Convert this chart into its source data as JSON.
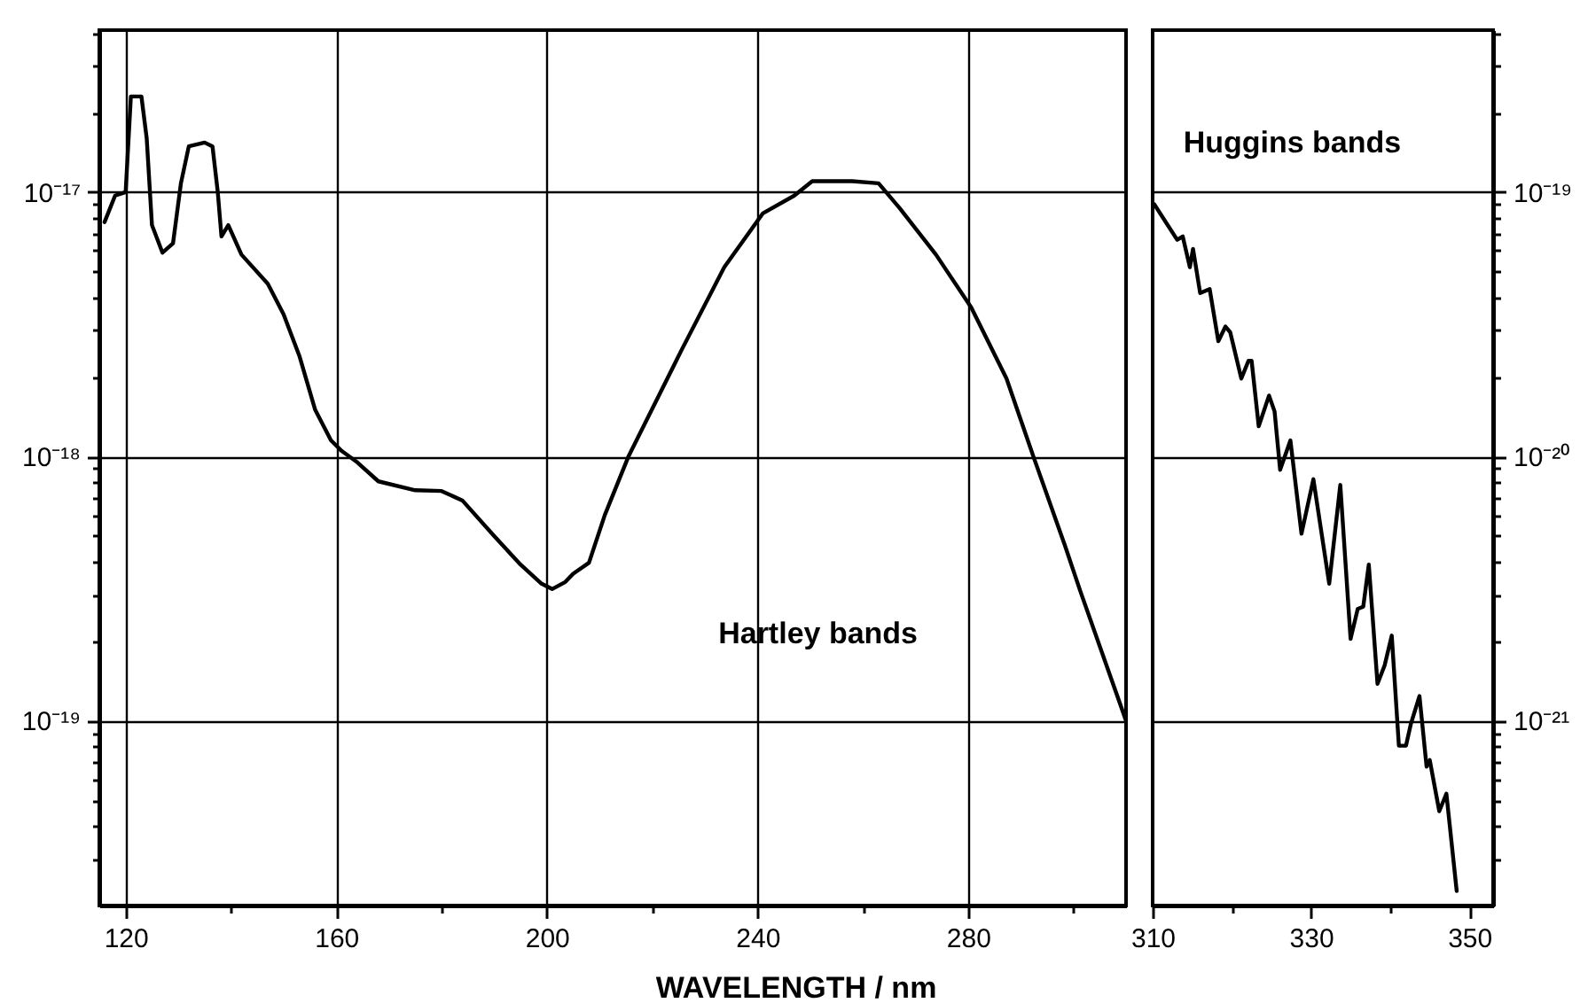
{
  "chart_data": [
    {
      "type": "line",
      "xlabel": "WAVELENGTH / nm",
      "log": "y",
      "grid": true,
      "xlim": [
        115,
        310
      ],
      "xticks": [
        120,
        {
          "value": 140,
          "label": null
        },
        160,
        {
          "value": 180,
          "label": null
        },
        200,
        {
          "value": 220,
          "label": null
        },
        240,
        {
          "value": 260,
          "label": null
        },
        280,
        {
          "value": 300,
          "label": null
        }
      ],
      "ylim": [
        2e-20,
        4.1e-17
      ],
      "yticks": [
        {
          "value": 3e-20,
          "label": null
        },
        {
          "value": 4e-20,
          "label": null
        },
        {
          "value": 5e-20,
          "label": null
        },
        {
          "value": 6e-20,
          "label": null
        },
        {
          "value": 7e-20,
          "label": null
        },
        {
          "value": 8e-20,
          "label": null
        },
        {
          "value": 9e-20,
          "label": null
        },
        {
          "value": 1e-19,
          "label": "10⁻¹⁹"
        },
        {
          "value": 2e-19,
          "label": null
        },
        {
          "value": 3e-19,
          "label": null
        },
        {
          "value": 4e-19,
          "label": null
        },
        {
          "value": 5e-19,
          "label": null
        },
        {
          "value": 6e-19,
          "label": null
        },
        {
          "value": 7e-19,
          "label": null
        },
        {
          "value": 8e-19,
          "label": null
        },
        {
          "value": 9e-19,
          "label": null
        },
        {
          "value": 1e-18,
          "label": "10⁻¹⁸"
        },
        {
          "value": 2e-18,
          "label": null
        },
        {
          "value": 3e-18,
          "label": null
        },
        {
          "value": 4e-18,
          "label": null
        },
        {
          "value": 5e-18,
          "label": null
        },
        {
          "value": 6e-18,
          "label": null
        },
        {
          "value": 7e-18,
          "label": null
        },
        {
          "value": 8e-18,
          "label": null
        },
        {
          "value": 9e-18,
          "label": null
        },
        {
          "value": 1e-17,
          "label": "10⁻¹⁷"
        },
        {
          "value": 2e-17,
          "label": null
        },
        {
          "value": 3e-17,
          "label": null
        },
        {
          "value": 4e-17,
          "label": null
        }
      ],
      "annotations": [
        "Hartley bands"
      ],
      "x": [
        116,
        118,
        120,
        121,
        123,
        124,
        125,
        127,
        129,
        130.5,
        132,
        135,
        136.5,
        137.5,
        138.2,
        139.5,
        142,
        147,
        150,
        153,
        156,
        159,
        161,
        164,
        168,
        175,
        180,
        184,
        190,
        195,
        199,
        201,
        203.5,
        205,
        208,
        211,
        215.5,
        225.6,
        233.7,
        241,
        247,
        250.4,
        253.8,
        258,
        263,
        267,
        273.9,
        280.6,
        287.3,
        292.4,
        298.4,
        301.3,
        310
      ],
      "series": [
        {
          "color": "#000000",
          "values": [
            7.7e-18,
            9.7e-18,
            1e-17,
            2.3e-17,
            2.3e-17,
            1.6e-17,
            7.5e-18,
            5.9e-18,
            6.4e-18,
            1.08e-17,
            1.49e-17,
            1.54e-17,
            1.49e-17,
            1e-17,
            6.8e-18,
            7.5e-18,
            5.8e-18,
            4.5e-18,
            3.45e-18,
            2.4e-18,
            1.5e-18,
            1.15e-18,
            1.05e-18,
            9.5e-19,
            8.05e-19,
            7.45e-19,
            7.4e-19,
            6.8e-19,
            5e-19,
            3.9e-19,
            3.3e-19,
            3.15e-19,
            3.35e-19,
            3.6e-19,
            3.96e-19,
            6e-19,
            1e-18,
            2.53e-18,
            5.2e-18,
            8.3e-18,
            9.7e-18,
            1.1e-17,
            1.1e-17,
            1.1e-17,
            1.08e-17,
            8.7e-18,
            5.8e-18,
            3.66e-18,
            1.97e-18,
            1e-18,
            4.6e-19,
            3.1e-19,
            1e-19
          ]
        }
      ]
    },
    {
      "type": "line",
      "log": "y2",
      "grid": "y",
      "xlim": [
        310,
        353
      ],
      "xticks": [
        310,
        {
          "value": 320,
          "label": null
        },
        330,
        {
          "value": 340,
          "label": null
        },
        350
      ],
      "y2lim": [
        2e-22,
        4.1e-19
      ],
      "y2ticks": [
        {
          "value": 3e-22,
          "label": null
        },
        {
          "value": 4e-22,
          "label": null
        },
        {
          "value": 5e-22,
          "label": null
        },
        {
          "value": 6e-22,
          "label": null
        },
        {
          "value": 7e-22,
          "label": null
        },
        {
          "value": 8e-22,
          "label": null
        },
        {
          "value": 9e-22,
          "label": null
        },
        {
          "value": 1e-21,
          "label": "10⁻²¹"
        },
        {
          "value": 2e-21,
          "label": null
        },
        {
          "value": 3e-21,
          "label": null
        },
        {
          "value": 4e-21,
          "label": null
        },
        {
          "value": 5e-21,
          "label": null
        },
        {
          "value": 6e-21,
          "label": null
        },
        {
          "value": 7e-21,
          "label": null
        },
        {
          "value": 8e-21,
          "label": null
        },
        {
          "value": 9e-21,
          "label": null
        },
        {
          "value": 1e-20,
          "label": "10⁻²⁰"
        },
        {
          "value": 2e-20,
          "label": null
        },
        {
          "value": 3e-20,
          "label": null
        },
        {
          "value": 4e-20,
          "label": null
        },
        {
          "value": 5e-20,
          "label": null
        },
        {
          "value": 6e-20,
          "label": null
        },
        {
          "value": 7e-20,
          "label": null
        },
        {
          "value": 8e-20,
          "label": null
        },
        {
          "value": 9e-20,
          "label": null
        },
        {
          "value": 1e-19,
          "label": "10⁻¹⁹"
        },
        {
          "value": 2e-19,
          "label": null
        },
        {
          "value": 3e-19,
          "label": null
        },
        {
          "value": 4e-19,
          "label": null
        }
      ],
      "annotations": [
        "Huggins bands"
      ],
      "x": [
        310.2,
        313.1,
        313.8,
        314.7,
        315.1,
        316,
        317.2,
        318.3,
        319.2,
        319.8,
        321.2,
        322.1,
        322.5,
        323.4,
        324.7,
        325.4,
        326.1,
        327.4,
        328.8,
        330.3,
        332.3,
        333.7,
        335,
        335.9,
        336.6,
        337.3,
        338.4,
        339.3,
        340.2,
        341.1,
        342,
        342.6,
        343.7,
        344.6,
        345,
        346.2,
        347.1,
        348.4
      ],
      "series": [
        {
          "color": "#000000",
          "axis": "y2",
          "values": [
            9e-20,
            6.6e-20,
            6.8e-20,
            5.2e-20,
            6.1e-20,
            4.15e-20,
            4.3e-20,
            2.73e-20,
            3.1e-20,
            2.95e-20,
            1.97e-20,
            2.3e-20,
            2.3e-20,
            1.3e-20,
            1.7e-20,
            1.48e-20,
            8.9e-21,
            1.15e-20,
            5.1e-21,
            8.2e-21,
            3.3e-21,
            7.8e-21,
            2.04e-21,
            2.65e-21,
            2.7e-21,
            3.9e-21,
            1.38e-21,
            1.62e-21,
            2.1e-21,
            8.05e-22,
            8.05e-22,
            9.7e-22,
            1.24e-21,
            6.7e-22,
            7.1e-22,
            4.55e-22,
            5.3e-22,
            2.27e-22
          ]
        }
      ]
    }
  ]
}
